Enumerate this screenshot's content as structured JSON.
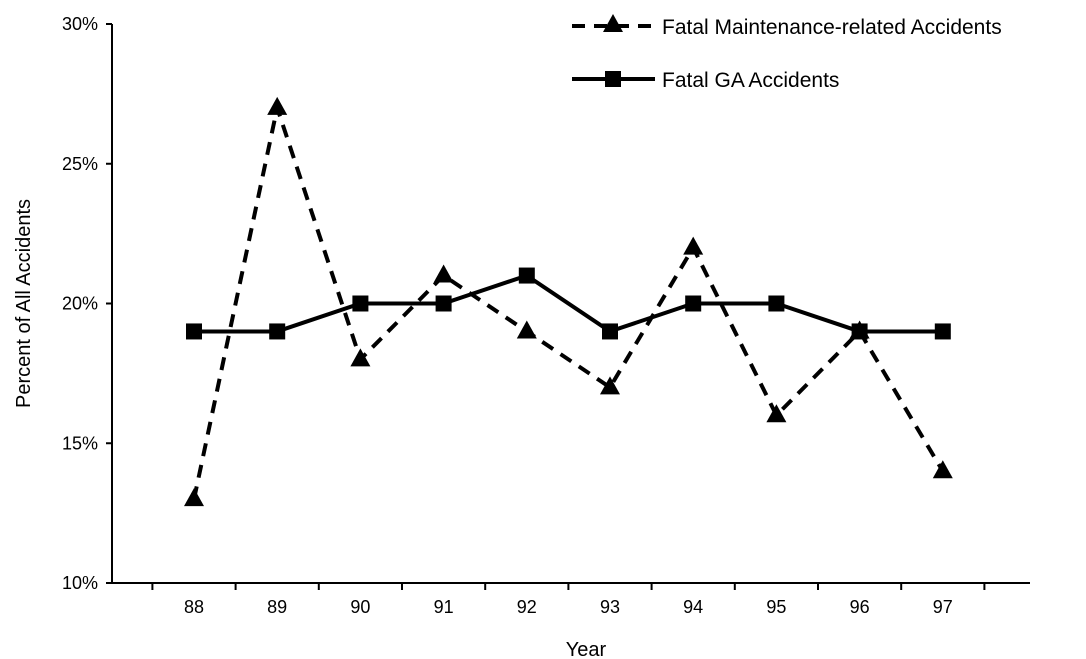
{
  "chart_data": {
    "type": "line",
    "title": "",
    "xlabel": "Year",
    "ylabel": "Percent of All Accidents",
    "categories": [
      "88",
      "89",
      "90",
      "91",
      "92",
      "93",
      "94",
      "95",
      "96",
      "97"
    ],
    "ylim": [
      10,
      30
    ],
    "yticks": [
      10,
      15,
      20,
      25,
      30
    ],
    "ytick_labels": [
      "10%",
      "15%",
      "20%",
      "25%",
      "30%"
    ],
    "grid": false,
    "legend_position": "top-right",
    "series": [
      {
        "name": "Fatal Maintenance-related Accidents",
        "values": [
          13,
          27,
          18,
          21,
          19,
          17,
          22,
          16,
          19,
          14
        ],
        "line_style": "dashed",
        "marker": "triangle",
        "color": "#000000"
      },
      {
        "name": "Fatal GA Accidents",
        "values": [
          19,
          19,
          20,
          20,
          21,
          19,
          20,
          20,
          19,
          19
        ],
        "line_style": "solid",
        "marker": "square",
        "color": "#000000"
      }
    ]
  }
}
